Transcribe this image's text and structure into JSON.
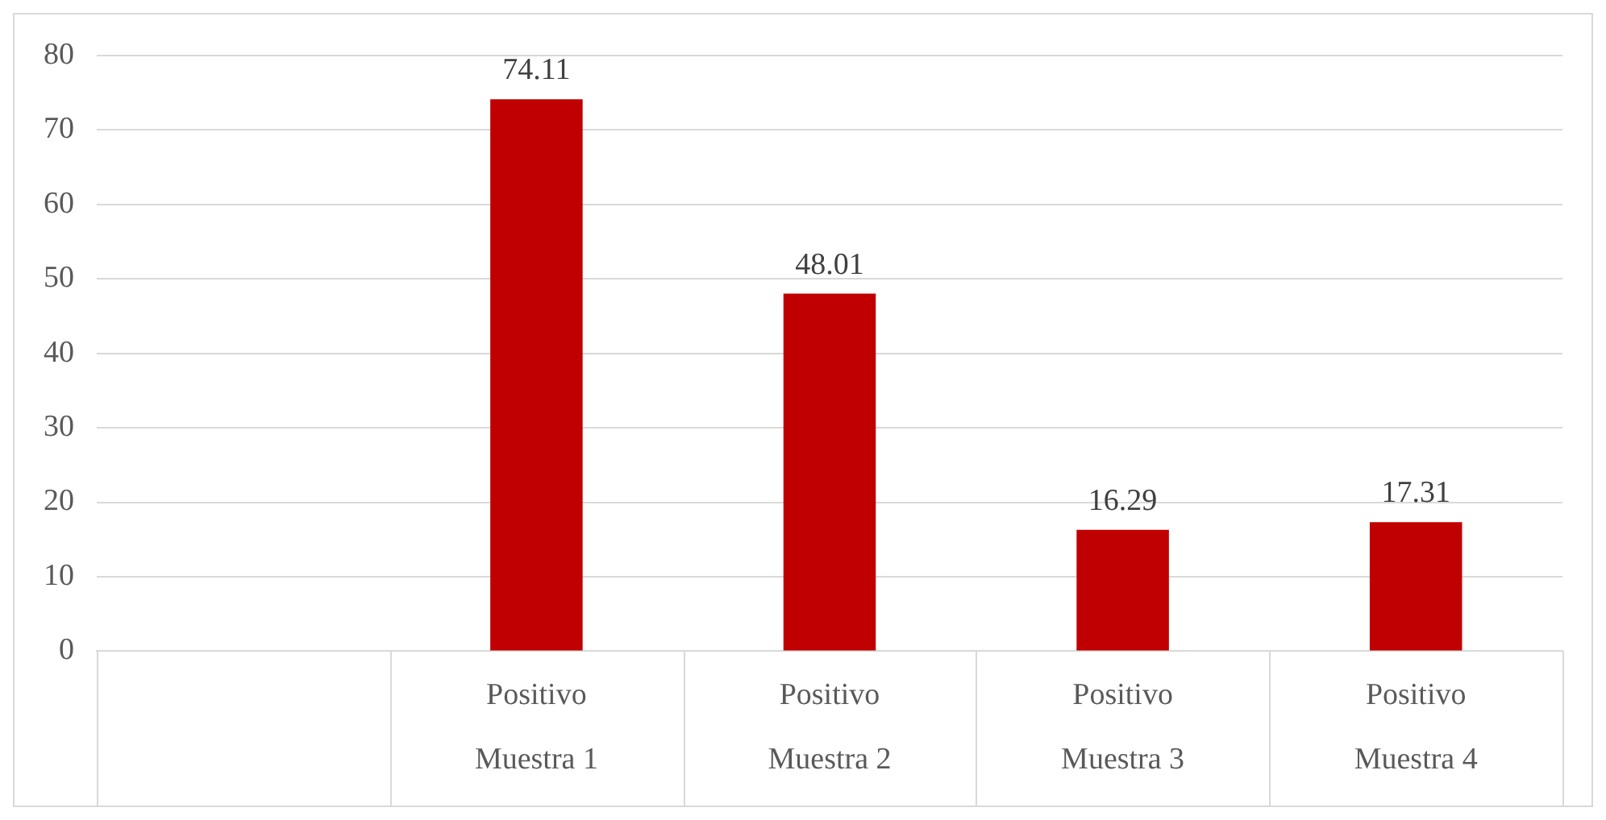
{
  "chart_data": {
    "type": "bar",
    "categories": [
      null,
      "Positivo\nMuestra 1",
      "Positivo\nMuestra 2",
      "Positivo\nMuestra 3",
      "Positivo\nMuestra 4"
    ],
    "values": [
      null,
      74.11,
      48.01,
      16.29,
      17.31
    ],
    "color": "#c00000",
    "ylim": [
      0,
      80
    ],
    "yticks": [
      0,
      10,
      20,
      30,
      40,
      50,
      60,
      70,
      80
    ],
    "grid": "y",
    "legend": false,
    "data_labels": true
  }
}
